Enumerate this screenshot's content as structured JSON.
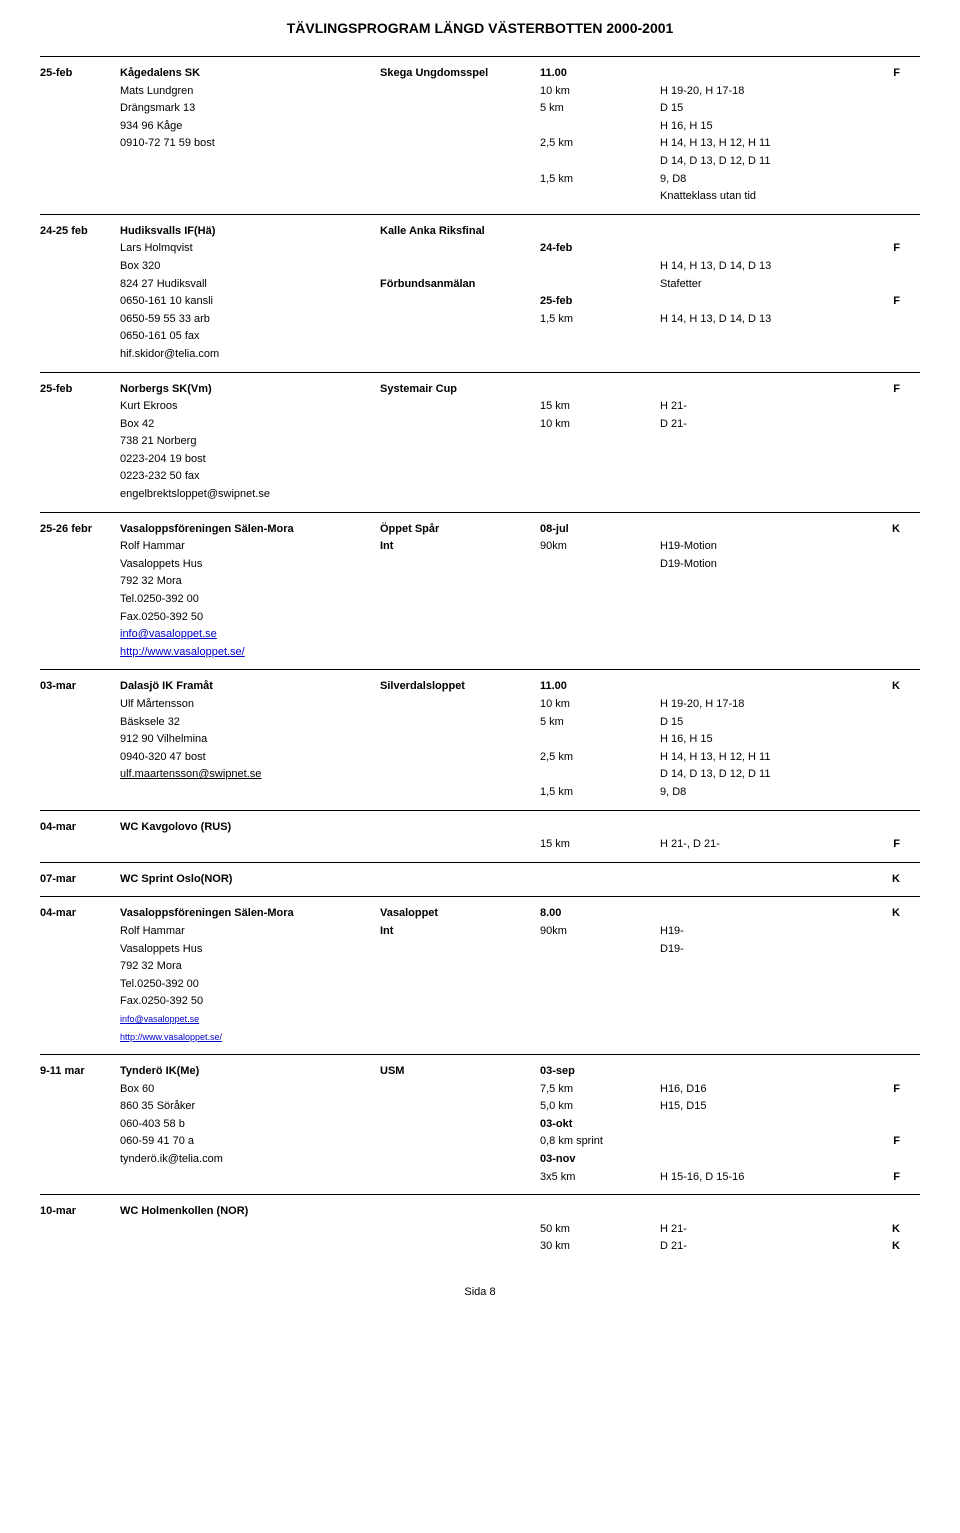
{
  "header": "TÄVLINGSPROGRAM LÄNGD VÄSTERBOTTEN 2000-2001",
  "footer": "Sida 8",
  "events": [
    {
      "rows": [
        {
          "c1": "25-feb",
          "c1b": true,
          "c2": "Kågedalens SK",
          "c2b": true,
          "c3": "Skega Ungdomsspel",
          "c3b": true,
          "c4": "11.00",
          "c4b": true,
          "c5": "",
          "c6": "F",
          "c6b": true
        },
        {
          "c1": "",
          "c2": "Mats Lundgren",
          "c3": "",
          "c4": "10 km",
          "c5": "H 19-20, H 17-18",
          "c6": ""
        },
        {
          "c1": "",
          "c2": "Drängsmark 13",
          "c3": "",
          "c4": "5 km",
          "c5": "D 15",
          "c6": ""
        },
        {
          "c1": "",
          "c2": "934 96 Kåge",
          "c3": "",
          "c4": "",
          "c5": "H 16, H 15",
          "c6": ""
        },
        {
          "c1": "",
          "c2": "0910-72 71 59 bost",
          "c3": "",
          "c4": "2,5 km",
          "c5": "H 14, H 13, H 12, H 11",
          "c6": ""
        },
        {
          "c1": "",
          "c2": "",
          "c3": "",
          "c4": "",
          "c5": "D 14, D 13, D 12, D 11",
          "c6": ""
        },
        {
          "c1": "",
          "c2": "",
          "c3": "",
          "c4": "1,5 km",
          "c5": "9, D8",
          "c6": ""
        },
        {
          "c1": "",
          "c2": "",
          "c3": "",
          "c4": "",
          "c5": "Knatteklass utan tid",
          "c6": ""
        }
      ]
    },
    {
      "rows": [
        {
          "c1": "24-25 feb",
          "c1b": true,
          "c2": "Hudiksvalls IF(Hä)",
          "c2b": true,
          "c3": "Kalle Anka Riksfinal",
          "c3b": true,
          "c4": "",
          "c5": "",
          "c6": ""
        },
        {
          "c1": "",
          "c2": "Lars Holmqvist",
          "c3": "",
          "c4": "24-feb",
          "c4b": true,
          "c5": "",
          "c6": "F",
          "c6b": true
        },
        {
          "c1": "",
          "c2": "Box 320",
          "c3": "",
          "c4": "",
          "c5": "H 14, H 13, D 14, D 13",
          "c6": ""
        },
        {
          "c1": "",
          "c2": "824 27 Hudiksvall",
          "c3": "Förbundsanmälan",
          "c3b": true,
          "c4": "",
          "c5": "Stafetter",
          "c6": ""
        },
        {
          "c1": "",
          "c2": "0650-161 10 kansli",
          "c3": "",
          "c4": "25-feb",
          "c4b": true,
          "c5": "",
          "c6": "F",
          "c6b": true
        },
        {
          "c1": "",
          "c2": "0650-59 55 33 arb",
          "c3": "",
          "c4": "1,5 km",
          "c5": "H 14, H 13, D 14, D 13",
          "c6": ""
        },
        {
          "c1": "",
          "c2": "0650-161 05 fax",
          "c3": "",
          "c4": "",
          "c5": "",
          "c6": ""
        },
        {
          "c1": "",
          "c2": "hif.skidor@telia.com",
          "c3": "",
          "c4": "",
          "c5": "",
          "c6": ""
        }
      ]
    },
    {
      "rows": [
        {
          "c1": "25-feb",
          "c1b": true,
          "c2": "Norbergs SK(Vm)",
          "c2b": true,
          "c3": "Systemair Cup",
          "c3b": true,
          "c4": "",
          "c5": "",
          "c6": "F",
          "c6b": true
        },
        {
          "c1": "",
          "c2": "Kurt Ekroos",
          "c3": "",
          "c4": "15 km",
          "c5": "H 21-",
          "c6": ""
        },
        {
          "c1": "",
          "c2": "Box 42",
          "c3": "",
          "c4": "10 km",
          "c5": "D 21-",
          "c6": ""
        },
        {
          "c1": "",
          "c2": "738 21 Norberg",
          "c3": "",
          "c4": "",
          "c5": "",
          "c6": ""
        },
        {
          "c1": "",
          "c2": "0223-204 19 bost",
          "c3": "",
          "c4": "",
          "c5": "",
          "c6": ""
        },
        {
          "c1": "",
          "c2": "0223-232 50 fax",
          "c3": "",
          "c4": "",
          "c5": "",
          "c6": ""
        },
        {
          "c1": "",
          "c2": "engelbrektsloppet@swipnet.se",
          "c3": "",
          "c4": "",
          "c5": "",
          "c6": ""
        }
      ]
    },
    {
      "rows": [
        {
          "c1": "25-26 febr",
          "c1b": true,
          "c2": "Vasaloppsföreningen Sälen-Mora",
          "c2b": true,
          "c3": "Öppet Spår",
          "c3b": true,
          "c4": "08-jul",
          "c4b": true,
          "c5": "",
          "c6": "K",
          "c6b": true
        },
        {
          "c1": "",
          "c2": "Rolf Hammar",
          "c3": "Int",
          "c3b": true,
          "c4": "90km",
          "c5": "H19-Motion",
          "c6": ""
        },
        {
          "c1": "",
          "c2": "Vasaloppets Hus",
          "c3": "",
          "c4": "",
          "c5": "D19-Motion",
          "c6": ""
        },
        {
          "c1": "",
          "c2": "792 32 Mora",
          "c3": "",
          "c4": "",
          "c5": "",
          "c6": ""
        },
        {
          "c1": "",
          "c2": "Tel.0250-392 00",
          "c3": "",
          "c4": "",
          "c5": "",
          "c6": ""
        },
        {
          "c1": "",
          "c2": "Fax.0250-392 50",
          "c3": "",
          "c4": "",
          "c5": "",
          "c6": ""
        },
        {
          "c1": "",
          "c2": "info@vasaloppet.se",
          "c2link": true,
          "c3": "",
          "c4": "",
          "c5": "",
          "c6": ""
        },
        {
          "c1": "",
          "c2": "http://www.vasaloppet.se/",
          "c2link": true,
          "c3": "",
          "c4": "",
          "c5": "",
          "c6": ""
        }
      ]
    },
    {
      "rows": [
        {
          "c1": "03-mar",
          "c1b": true,
          "c2": "Dalasjö IK Framåt",
          "c2b": true,
          "c3": "Silverdalsloppet",
          "c3b": true,
          "c4": "11.00",
          "c4b": true,
          "c5": "",
          "c6": "K",
          "c6b": true
        },
        {
          "c1": "",
          "c2": "Ulf Mårtensson",
          "c3": "",
          "c4": "10 km",
          "c5": "H 19-20, H 17-18",
          "c6": ""
        },
        {
          "c1": "",
          "c2": "Bäsksele 32",
          "c3": "",
          "c4": "5 km",
          "c5": "D 15",
          "c6": ""
        },
        {
          "c1": "",
          "c2": "912 90 Vilhelmina",
          "c3": "",
          "c4": "",
          "c5": "H 16, H 15",
          "c6": ""
        },
        {
          "c1": "",
          "c2": "0940-320 47 bost",
          "c3": "",
          "c4": "2,5 km",
          "c5": "H 14, H 13, H 12, H 11",
          "c6": ""
        },
        {
          "c1": "",
          "c2": "ulf.maartensson@swipnet.se",
          "c2mail": true,
          "c3": "",
          "c4": "",
          "c5": "D 14, D 13, D 12, D 11",
          "c6": ""
        },
        {
          "c1": "",
          "c2": "",
          "c3": "",
          "c4": "1,5 km",
          "c5": "9, D8",
          "c6": ""
        }
      ]
    },
    {
      "rows": [
        {
          "c1": "04-mar",
          "c1b": true,
          "c2": "WC Kavgolovo (RUS)",
          "c2b": true,
          "c3": "",
          "c4": "",
          "c5": "",
          "c6": ""
        },
        {
          "c1": "",
          "c2": "",
          "c3": "",
          "c4": "15 km",
          "c5": "H 21-, D 21-",
          "c6": "F",
          "c6b": true
        }
      ]
    },
    {
      "rows": [
        {
          "c1": "07-mar",
          "c1b": true,
          "c2": "WC Sprint Oslo(NOR)",
          "c2b": true,
          "c3": "",
          "c4": "",
          "c5": "",
          "c6": "K",
          "c6b": true
        }
      ]
    },
    {
      "rows": [
        {
          "c1": "04-mar",
          "c1b": true,
          "c2": "Vasaloppsföreningen Sälen-Mora",
          "c2b": true,
          "c3": "Vasaloppet",
          "c3b": true,
          "c4": "8.00",
          "c4b": true,
          "c5": "",
          "c6": "K",
          "c6b": true
        },
        {
          "c1": "",
          "c2": "Rolf Hammar",
          "c3": "Int",
          "c3b": true,
          "c4": "90km",
          "c5": "H19-",
          "c6": ""
        },
        {
          "c1": "",
          "c2": "Vasaloppets Hus",
          "c3": "",
          "c4": "",
          "c5": "D19-",
          "c6": ""
        },
        {
          "c1": "",
          "c2": "792 32 Mora",
          "c3": "",
          "c4": "",
          "c5": "",
          "c6": ""
        },
        {
          "c1": "",
          "c2": "Tel.0250-392 00",
          "c3": "",
          "c4": "",
          "c5": "",
          "c6": ""
        },
        {
          "c1": "",
          "c2": "Fax.0250-392 50",
          "c3": "",
          "c4": "",
          "c5": "",
          "c6": ""
        },
        {
          "c1": "",
          "c2": "info@vasaloppet.se",
          "c2link": true,
          "c2small": true,
          "c3": "",
          "c4": "",
          "c5": "",
          "c6": ""
        },
        {
          "c1": "",
          "c2": "http://www.vasaloppet.se/",
          "c2link": true,
          "c2small": true,
          "c3": "",
          "c4": "",
          "c5": "",
          "c6": ""
        }
      ]
    },
    {
      "rows": [
        {
          "c1": "9-11 mar",
          "c1b": true,
          "c2": "Tynderö IK(Me)",
          "c2b": true,
          "c3": "USM",
          "c3b": true,
          "c4": "03-sep",
          "c4b": true,
          "c5": "",
          "c6": ""
        },
        {
          "c1": "",
          "c2": "Box 60",
          "c3": "",
          "c4": "7,5 km",
          "c5": "H16, D16",
          "c6": "F",
          "c6b": true
        },
        {
          "c1": "",
          "c2": "860 35 Söråker",
          "c3": "",
          "c4": "5,0 km",
          "c5": "H15, D15",
          "c6": ""
        },
        {
          "c1": "",
          "c2": "060-403 58 b",
          "c3": "",
          "c4": "03-okt",
          "c4b": true,
          "c5": "",
          "c6": ""
        },
        {
          "c1": "",
          "c2": "060-59 41 70 a",
          "c3": "",
          "c4": "0,8 km sprint",
          "c5": "",
          "c6": "F",
          "c6b": true
        },
        {
          "c1": "",
          "c2": "tynderö.ik@telia.com",
          "c3": "",
          "c4": "03-nov",
          "c4b": true,
          "c5": "",
          "c6": ""
        },
        {
          "c1": "",
          "c2": "",
          "c3": "",
          "c4": "3x5 km",
          "c5": "H 15-16, D 15-16",
          "c6": "F",
          "c6b": true
        }
      ]
    },
    {
      "rows": [
        {
          "c1": "10-mar",
          "c1b": true,
          "c2": "WC Holmenkollen (NOR)",
          "c2b": true,
          "c3": "",
          "c4": "",
          "c5": "",
          "c6": ""
        },
        {
          "c1": "",
          "c2": "",
          "c3": "",
          "c4": "50 km",
          "c5": "H 21-",
          "c6": "K",
          "c6b": true
        },
        {
          "c1": "",
          "c2": "",
          "c3": "",
          "c4": "30 km",
          "c5": "D 21-",
          "c6": "K",
          "c6b": true
        }
      ]
    }
  ]
}
